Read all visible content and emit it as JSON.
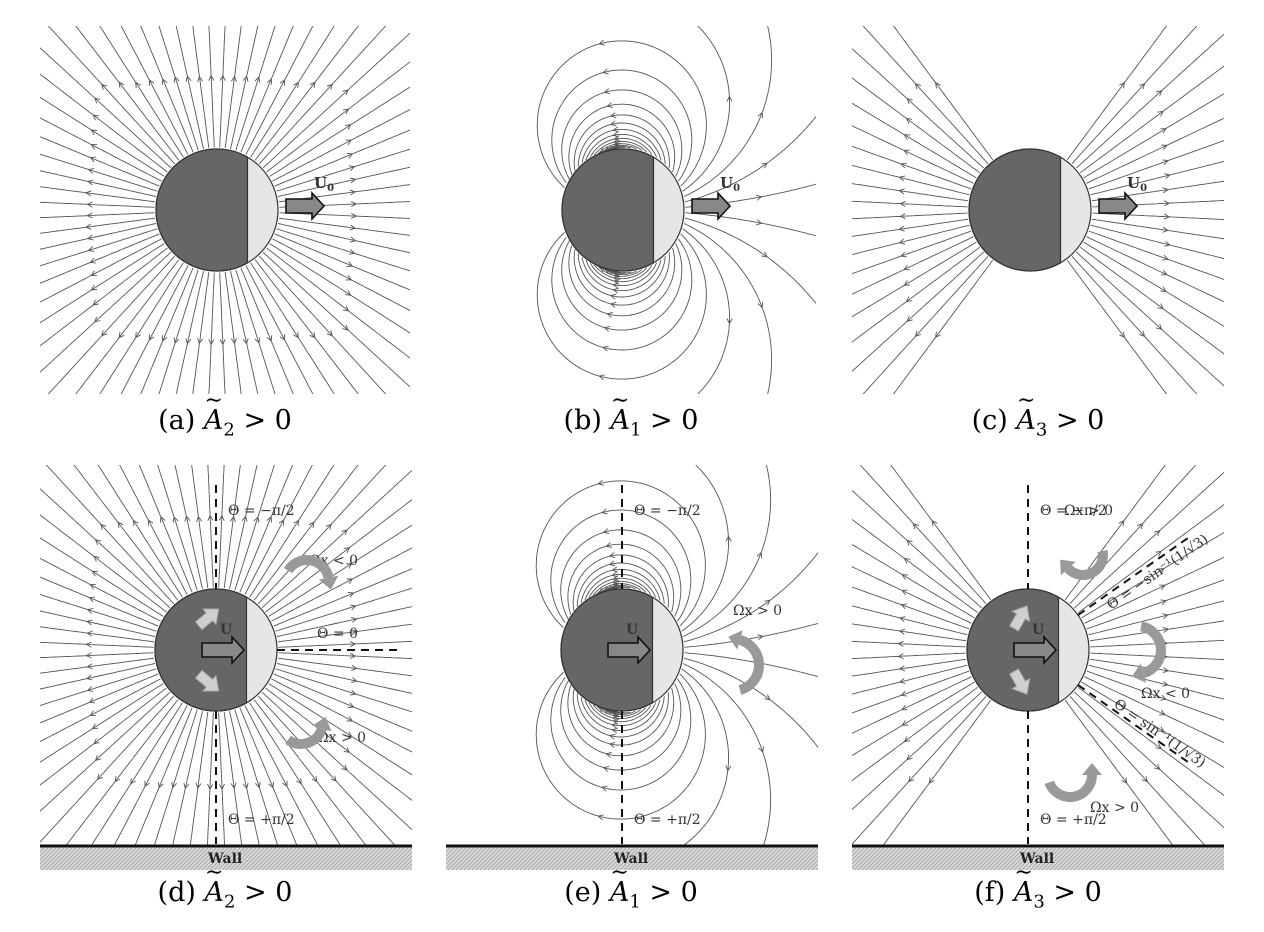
{
  "panels": [
    {
      "id": "a",
      "kind": "A2",
      "wall": false,
      "label": "(a)",
      "sym": "A",
      "sub": "2",
      "rel": "> 0",
      "velocity": "U",
      "velocity_sub": "0"
    },
    {
      "id": "b",
      "kind": "A1",
      "wall": false,
      "label": "(b)",
      "sym": "A",
      "sub": "1",
      "rel": "> 0",
      "velocity": "U",
      "velocity_sub": "0"
    },
    {
      "id": "c",
      "kind": "A3",
      "wall": false,
      "label": "(c)",
      "sym": "A",
      "sub": "3",
      "rel": "> 0",
      "velocity": "U",
      "velocity_sub": "0"
    },
    {
      "id": "d",
      "kind": "A2",
      "wall": true,
      "label": "(d)",
      "sym": "A",
      "sub": "2",
      "rel": "> 0",
      "velocity": "U",
      "wall_label": "Wall"
    },
    {
      "id": "e",
      "kind": "A1",
      "wall": true,
      "label": "(e)",
      "sym": "A",
      "sub": "1",
      "rel": "> 0",
      "velocity": "U",
      "wall_label": "Wall"
    },
    {
      "id": "f",
      "kind": "A3",
      "wall": true,
      "label": "(f)",
      "sym": "A",
      "sub": "3",
      "rel": "> 0",
      "velocity": "U",
      "wall_label": "Wall"
    }
  ],
  "annotations": {
    "theta_minus_pi_2": "Θ = −π/2",
    "theta_plus_pi_2": "Θ = +π/2",
    "theta_zero": "Θ = 0",
    "omega_lt": "Ωx < 0",
    "omega_gt": "Ωx > 0",
    "theta_asin_neg": "Θ = −sin⁻¹(1/√3)",
    "theta_asin_pos": "Θ = sin⁻¹(1/√3)"
  },
  "colors": {
    "body_dark": "#666666",
    "body_light": "#e6e6e6",
    "streamline": "#555555",
    "arrow_fill": "#888888",
    "rot_arrow": "#999999",
    "wall_hatch": "#999999"
  }
}
